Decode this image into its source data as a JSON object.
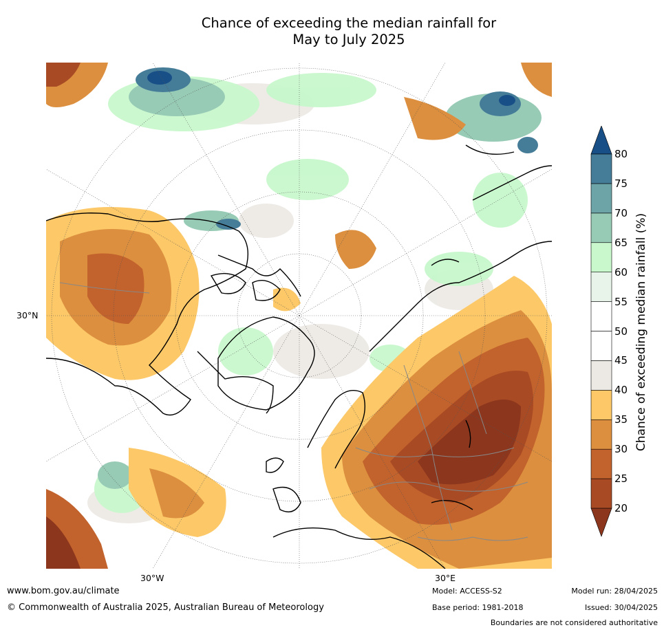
{
  "title_line1": "Chance of exceeding the median rainfall for",
  "title_line2": "May to July 2025",
  "map": {
    "lat_label": "30°N",
    "lon_label_west": "30°W",
    "lon_label_east": "30°E"
  },
  "colorbar": {
    "label": "Chance of exceeding median rainfall (%)",
    "ticks": [
      "20",
      "25",
      "30",
      "35",
      "40",
      "45",
      "50",
      "55",
      "60",
      "65",
      "70",
      "75",
      "80"
    ],
    "colors": [
      "#a84a24",
      "#c2622c",
      "#dc8f3e",
      "#fcc868",
      "#ece9e4",
      "#ffffff",
      "#ffffff",
      "#e8f4ea",
      "#c8f8cc",
      "#97cbb6",
      "#6ca4a8",
      "#457c98"
    ],
    "under_color": "#8c361d",
    "over_color": "#184f87"
  },
  "footer": {
    "website": "www.bom.gov.au/climate",
    "copyright": "© Commonwealth of Australia 2025, Australian Bureau of Meteorology",
    "model": "Model: ACCESS-S2",
    "base_period": "Base period: 1981-2018",
    "model_run": "Model run: 28/04/2025",
    "issued": "Issued: 30/04/2025",
    "disclaimer": "Boundaries are not considered authoritative"
  }
}
